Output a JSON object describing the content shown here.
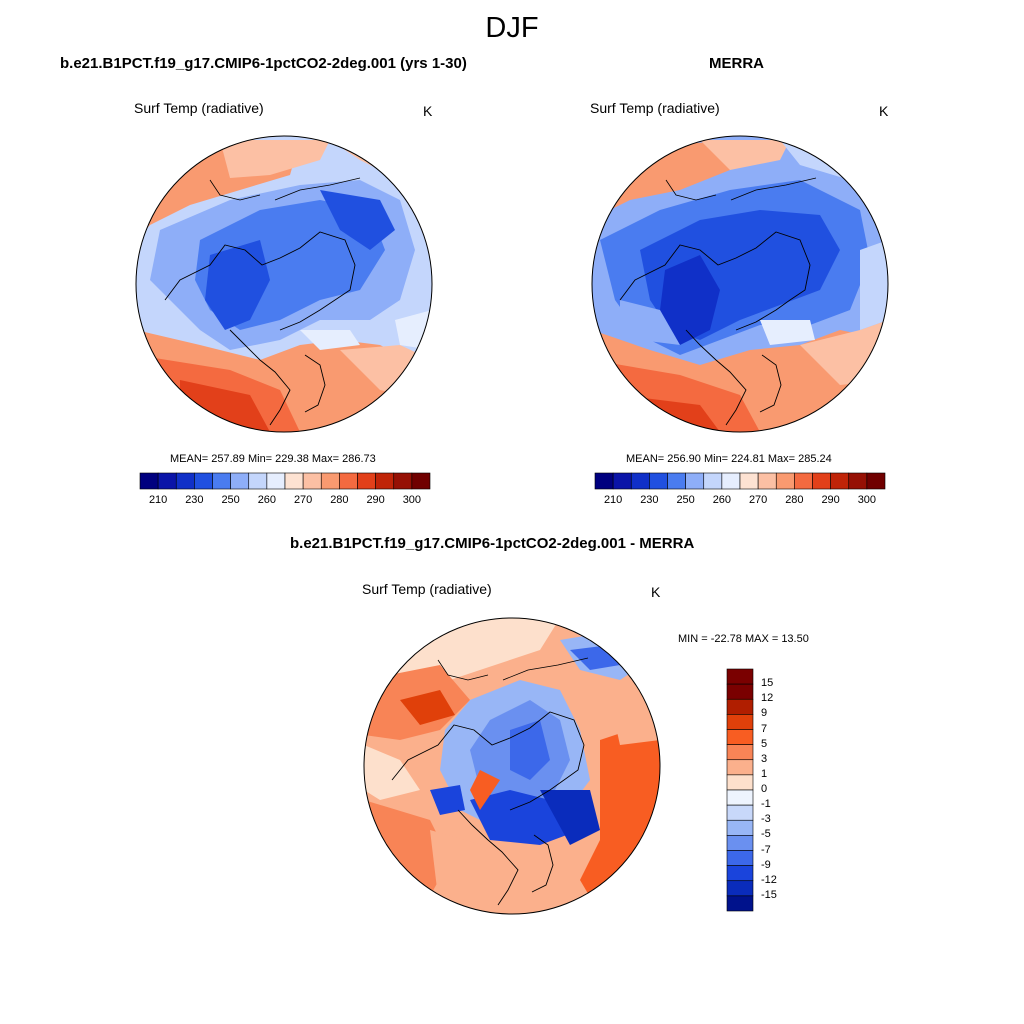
{
  "title": "DJF",
  "units": "K",
  "variable": "Surf Temp (radiative)",
  "panels": [
    {
      "name": "model",
      "title": "b.e21.B1PCT.f19_g17.CMIP6-1pctCO2-2deg.001 (yrs 1-30)",
      "variable": "Surf Temp (radiative)",
      "units": "K",
      "stats": "MEAN= 257.89  Min= 229.38  Max= 286.73",
      "colorbar_ticks": [
        "210",
        "230",
        "250",
        "260",
        "270",
        "280",
        "290",
        "300"
      ]
    },
    {
      "name": "obs",
      "title": "MERRA",
      "variable": "Surf Temp (radiative)",
      "units": "K",
      "stats": "MEAN= 256.90  Min= 224.81  Max= 285.24",
      "colorbar_ticks": [
        "210",
        "230",
        "250",
        "260",
        "270",
        "280",
        "290",
        "300"
      ]
    },
    {
      "name": "diff",
      "title": "b.e21.B1PCT.f19_g17.CMIP6-1pctCO2-2deg.001 - MERRA",
      "variable": "Surf Temp (radiative)",
      "units": "K",
      "stats": "MIN = -22.78 MAX =  13.50",
      "colorbar_ticks": [
        "15",
        "12",
        "9",
        "7",
        "5",
        "3",
        "1",
        "0",
        "-1",
        "-3",
        "-5",
        "-7",
        "-9",
        "-12",
        "-15"
      ]
    }
  ],
  "colors": {
    "abs_scale": [
      "#00007f",
      "#0a14a8",
      "#1030c8",
      "#2050e0",
      "#4a7cf0",
      "#8eaef8",
      "#c4d6fc",
      "#e6eefe",
      "#fde2d2",
      "#fcc0a4",
      "#f99a70",
      "#f46a40",
      "#e2401a",
      "#c02408",
      "#961004",
      "#700000"
    ],
    "diff_scale": [
      "#7a0000",
      "#b01e00",
      "#e0400a",
      "#f85d22",
      "#f88456",
      "#fbb08c",
      "#fde0cc",
      "#eef4fe",
      "#c8d8fa",
      "#98b6f6",
      "#6a90f0",
      "#3c68ea",
      "#1a44dc",
      "#0a2cbc",
      "#00128c"
    ]
  }
}
